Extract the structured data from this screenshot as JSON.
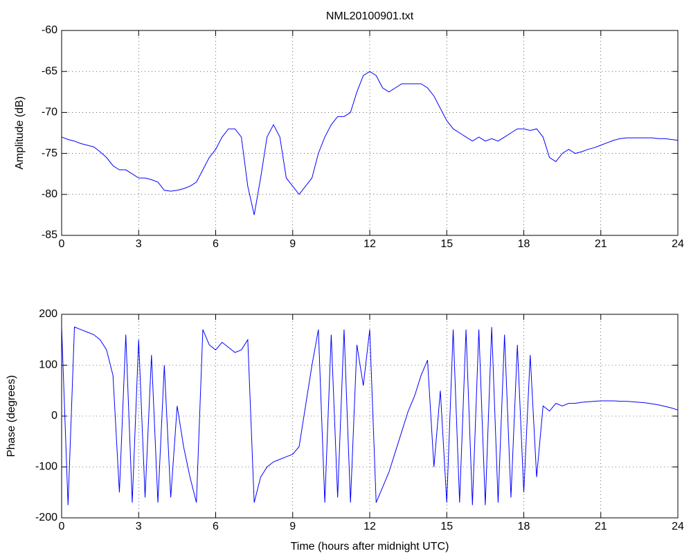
{
  "chart_data": [
    {
      "type": "line",
      "title": "NML20100901.txt",
      "ylabel": "Amplitude (dB)",
      "grid": true,
      "x": [
        0,
        0.25,
        0.5,
        0.75,
        1,
        1.25,
        1.5,
        1.75,
        2,
        2.25,
        2.5,
        2.75,
        3,
        3.25,
        3.5,
        3.75,
        4,
        4.25,
        4.5,
        4.75,
        5,
        5.25,
        5.5,
        5.75,
        6,
        6.25,
        6.5,
        6.75,
        7,
        7.25,
        7.5,
        7.75,
        8,
        8.25,
        8.5,
        8.75,
        9,
        9.25,
        9.5,
        9.75,
        10,
        10.25,
        10.5,
        10.75,
        11,
        11.25,
        11.5,
        11.75,
        12,
        12.25,
        12.5,
        12.75,
        13,
        13.25,
        13.5,
        13.75,
        14,
        14.25,
        14.5,
        14.75,
        15,
        15.25,
        15.5,
        15.75,
        16,
        16.25,
        16.5,
        16.75,
        17,
        17.25,
        17.5,
        17.75,
        18,
        18.25,
        18.5,
        18.75,
        19,
        19.25,
        19.5,
        19.75,
        20,
        20.25,
        20.5,
        20.75,
        21,
        21.25,
        21.5,
        21.75,
        22,
        22.25,
        22.5,
        22.75,
        23,
        23.25,
        23.5,
        23.75,
        24
      ],
      "series": [
        {
          "color": "#0000ff",
          "values": [
            -73,
            -73.3,
            -73.5,
            -73.8,
            -74,
            -74.2,
            -74.8,
            -75.5,
            -76.5,
            -77,
            -77,
            -77.5,
            -78,
            -78,
            -78.2,
            -78.5,
            -79.5,
            -79.6,
            -79.5,
            -79.3,
            -79,
            -78.5,
            -77,
            -75.5,
            -74.5,
            -73,
            -72,
            -72,
            -73,
            -79,
            -82.5,
            -78,
            -73,
            -71.5,
            -73,
            -78,
            -79,
            -80,
            -79,
            -78,
            -75,
            -73,
            -71.5,
            -70.5,
            -70.5,
            -70,
            -67.5,
            -65.5,
            -65,
            -65.5,
            -67,
            -67.5,
            -67,
            -66.5,
            -66.5,
            -66.5,
            -66.5,
            -67,
            -68,
            -69.5,
            -71,
            -72,
            -72.5,
            -73,
            -73.5,
            -73,
            -73.5,
            -73.2,
            -73.5,
            -73,
            -72.5,
            -72,
            -72,
            -72.2,
            -72,
            -73,
            -75.5,
            -76,
            -75,
            -74.5,
            -75,
            -74.8,
            -74.5,
            -74.3,
            -74,
            -73.7,
            -73.4,
            -73.2,
            -73.1,
            -73.1,
            -73.1,
            -73.1,
            -73.1,
            -73.2,
            -73.2,
            -73.3,
            -73.4
          ]
        }
      ],
      "xlim": [
        0,
        24
      ],
      "xticks": [
        0,
        3,
        6,
        9,
        12,
        15,
        18,
        21,
        24
      ],
      "ylim": [
        -85,
        -60
      ],
      "yticks": [
        -85,
        -80,
        -75,
        -70,
        -65,
        -60
      ]
    },
    {
      "type": "line",
      "xlabel": "Time (hours after midnight UTC)",
      "ylabel": "Phase (degrees)",
      "grid": true,
      "x": [
        0,
        0.25,
        0.5,
        0.75,
        1,
        1.25,
        1.5,
        1.75,
        2,
        2.25,
        2.5,
        2.75,
        3,
        3.25,
        3.5,
        3.75,
        4,
        4.25,
        4.5,
        4.75,
        5,
        5.25,
        5.5,
        5.75,
        6,
        6.25,
        6.5,
        6.75,
        7,
        7.25,
        7.5,
        7.75,
        8,
        8.25,
        8.5,
        8.75,
        9,
        9.25,
        9.5,
        9.75,
        10,
        10.25,
        10.5,
        10.75,
        11,
        11.25,
        11.5,
        11.75,
        12,
        12.25,
        12.5,
        12.75,
        13,
        13.25,
        13.5,
        13.75,
        14,
        14.25,
        14.5,
        14.75,
        15,
        15.25,
        15.5,
        15.75,
        16,
        16.25,
        16.5,
        16.75,
        17,
        17.25,
        17.5,
        17.75,
        18,
        18.25,
        18.5,
        18.75,
        19,
        19.25,
        19.5,
        19.75,
        20,
        20.25,
        20.5,
        20.75,
        21,
        21.25,
        21.5,
        21.75,
        22,
        22.25,
        22.5,
        22.75,
        23,
        23.25,
        23.5,
        23.75,
        24
      ],
      "series": [
        {
          "color": "#0000ff",
          "values": [
            175,
            -175,
            175,
            170,
            165,
            160,
            150,
            130,
            80,
            -150,
            160,
            -170,
            150,
            -160,
            120,
            -170,
            100,
            -160,
            20,
            -60,
            -120,
            -170,
            170,
            140,
            130,
            145,
            135,
            125,
            130,
            150,
            -170,
            -120,
            -100,
            -90,
            -85,
            -80,
            -75,
            -60,
            20,
            100,
            170,
            -170,
            160,
            -160,
            170,
            -170,
            140,
            60,
            170,
            -170,
            -140,
            -110,
            -70,
            -30,
            10,
            40,
            80,
            110,
            -100,
            50,
            -170,
            170,
            -170,
            170,
            -175,
            170,
            -175,
            175,
            -170,
            160,
            -160,
            140,
            -150,
            120,
            -120,
            20,
            10,
            25,
            20,
            25,
            25,
            27,
            28,
            29,
            30,
            30,
            30,
            29,
            29,
            28,
            27,
            26,
            24,
            22,
            19,
            16,
            12
          ]
        }
      ],
      "xlim": [
        0,
        24
      ],
      "xticks": [
        0,
        3,
        6,
        9,
        12,
        15,
        18,
        21,
        24
      ],
      "ylim": [
        -200,
        200
      ],
      "yticks": [
        -200,
        -100,
        0,
        100,
        200
      ]
    }
  ]
}
